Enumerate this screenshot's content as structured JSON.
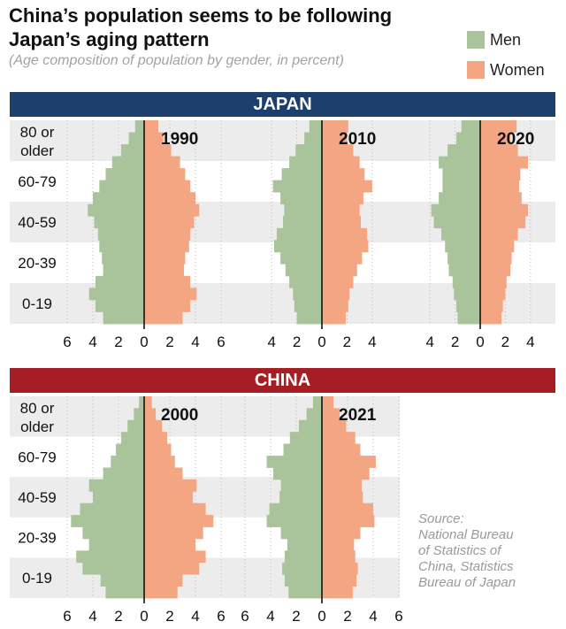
{
  "title_line1": "China’s population seems to be following",
  "title_line2": "Japan’s aging pattern",
  "subtitle": "(Age composition of population by gender, in percent)",
  "legend": [
    {
      "label": "Men",
      "color": "#a9c49a"
    },
    {
      "label": "Women",
      "color": "#f4a683"
    }
  ],
  "source": [
    "Source:",
    "National Bureau",
    "of Statistics of",
    "China, Statistics",
    "Bureau of Japan"
  ],
  "colors": {
    "men": "#a9c49a",
    "women": "#f4a683",
    "stripe": "#ececec",
    "japan": "#1c3f6e",
    "china": "#a61d24"
  },
  "chart_data": {
    "type": "population-pyramid",
    "xlabel": "percent",
    "age_group_labels": [
      "80 or older",
      "60-79",
      "40-59",
      "20-39",
      "0-19"
    ],
    "age_bins": "5-year bins from 0-4 (bottom) to 80+ (top)",
    "panels": [
      {
        "country": "JAPAN",
        "year": "1990",
        "xlim": [
          -6,
          6
        ],
        "ticks": [
          "6",
          "4",
          "2",
          "0",
          "2",
          "4",
          "6"
        ],
        "men": [
          3.2,
          3.8,
          4.3,
          3.8,
          3.2,
          3.3,
          3.5,
          3.6,
          3.9,
          4.4,
          4.0,
          3.5,
          3.0,
          2.5,
          1.8,
          1.2,
          0.7
        ],
        "women": [
          3.0,
          3.6,
          4.1,
          3.6,
          3.1,
          3.2,
          3.5,
          3.6,
          3.9,
          4.3,
          4.0,
          3.6,
          3.2,
          2.8,
          2.1,
          1.5,
          1.1
        ]
      },
      {
        "country": "JAPAN",
        "year": "2010",
        "xlim": [
          -4,
          4
        ],
        "ticks": [
          "4",
          "2",
          "0",
          "2",
          "4"
        ],
        "men": [
          2.0,
          2.2,
          2.3,
          2.6,
          2.9,
          3.3,
          3.8,
          3.6,
          3.1,
          3.0,
          3.3,
          3.9,
          3.2,
          2.6,
          2.1,
          1.4,
          1.0
        ],
        "women": [
          1.9,
          2.1,
          2.2,
          2.5,
          2.8,
          3.2,
          3.7,
          3.6,
          3.1,
          3.0,
          3.3,
          4.0,
          3.4,
          3.0,
          2.5,
          2.0,
          2.1
        ]
      },
      {
        "country": "JAPAN",
        "year": "2020",
        "xlim": [
          -4,
          4
        ],
        "ticks": [
          "4",
          "2",
          "0",
          "2",
          "4"
        ],
        "men": [
          1.8,
          1.9,
          2.1,
          2.2,
          2.5,
          2.6,
          2.8,
          3.1,
          3.7,
          3.9,
          3.3,
          3.0,
          3.0,
          3.3,
          2.6,
          1.9,
          1.5
        ],
        "women": [
          1.7,
          1.8,
          2.0,
          2.1,
          2.4,
          2.5,
          2.7,
          3.0,
          3.6,
          3.8,
          3.3,
          3.1,
          3.2,
          3.8,
          3.0,
          2.4,
          2.9
        ]
      },
      {
        "country": "CHINA",
        "year": "2000",
        "xlim": [
          -6,
          6
        ],
        "ticks": [
          "6",
          "4",
          "2",
          "0",
          "2",
          "4",
          "6"
        ],
        "men": [
          3.0,
          3.4,
          4.8,
          5.3,
          4.3,
          4.8,
          5.7,
          5.0,
          4.0,
          4.3,
          3.2,
          2.6,
          2.2,
          1.8,
          1.3,
          0.8,
          0.4
        ],
        "women": [
          2.6,
          3.0,
          4.3,
          4.8,
          4.0,
          4.6,
          5.4,
          4.8,
          3.8,
          4.1,
          3.0,
          2.4,
          2.1,
          1.8,
          1.4,
          0.9,
          0.6
        ]
      },
      {
        "country": "CHINA",
        "year": "2021",
        "xlim": [
          -6,
          6
        ],
        "ticks": [
          "6",
          "4",
          "2",
          "0",
          "2",
          "4",
          "6"
        ],
        "men": [
          2.6,
          2.9,
          3.1,
          2.9,
          2.7,
          3.2,
          4.3,
          4.1,
          3.3,
          3.2,
          3.8,
          4.3,
          3.0,
          2.5,
          1.8,
          1.2,
          0.7
        ],
        "women": [
          2.4,
          2.7,
          2.8,
          2.6,
          2.5,
          3.0,
          4.1,
          4.0,
          3.2,
          3.1,
          3.7,
          4.2,
          3.0,
          2.6,
          1.9,
          1.4,
          0.9
        ]
      }
    ]
  }
}
